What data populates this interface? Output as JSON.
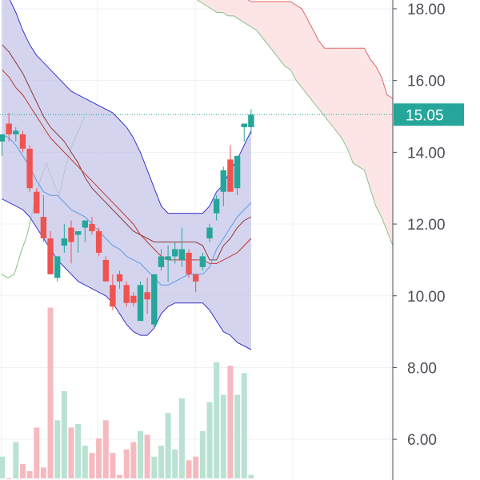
{
  "chart_data": {
    "type": "candlestick",
    "instrument_last_price": "15.05",
    "y_axis": {
      "ticks": [
        "6.00",
        "8.00",
        "10.00",
        "12.00",
        "14.00",
        "16.00",
        "18.00"
      ],
      "range": [
        5.0,
        18.2
      ],
      "position": "right"
    },
    "grid": true,
    "colors": {
      "up": "#26a69a",
      "down": "#ef5350",
      "up_volume": "#b9e2d3",
      "down_volume": "#f6b9c0",
      "band_fill": "#c5c6e8",
      "band_line": "#3a35c9",
      "cloud_fill": "#fde0e0",
      "cloud_line_red": "#e06666",
      "cloud_line_green": "#8bc08b",
      "ma_red": "#c0392b",
      "ma_dark_red": "#8e3a3a",
      "ma_blue": "#5b9be8",
      "price_tag": "#26a69a",
      "axis_text": "#4a4e57"
    },
    "candles": [
      {
        "o": 14.3,
        "h": 14.4,
        "l": 13.9,
        "c": 14.5
      },
      {
        "o": 14.8,
        "h": 15.1,
        "l": 14.3,
        "c": 14.5
      },
      {
        "o": 14.5,
        "h": 14.7,
        "l": 14.3,
        "c": 14.6
      },
      {
        "o": 14.5,
        "h": 14.6,
        "l": 14.0,
        "c": 14.1
      },
      {
        "o": 14.1,
        "h": 14.2,
        "l": 12.9,
        "c": 13.0
      },
      {
        "o": 12.9,
        "h": 13.0,
        "l": 12.4,
        "c": 12.3
      },
      {
        "o": 12.2,
        "h": 12.8,
        "l": 11.5,
        "c": 11.6
      },
      {
        "o": 11.6,
        "h": 11.8,
        "l": 10.6,
        "c": 10.6
      },
      {
        "o": 10.5,
        "h": 11.1,
        "l": 10.4,
        "c": 11.1
      },
      {
        "o": 11.4,
        "h": 12.0,
        "l": 11.2,
        "c": 11.6
      },
      {
        "o": 11.9,
        "h": 12.1,
        "l": 10.9,
        "c": 11.5
      },
      {
        "o": 11.7,
        "h": 11.8,
        "l": 11.2,
        "c": 11.8
      },
      {
        "o": 11.9,
        "h": 12.1,
        "l": 11.5,
        "c": 12.1
      },
      {
        "o": 12.0,
        "h": 12.2,
        "l": 11.7,
        "c": 11.8
      },
      {
        "o": 11.8,
        "h": 11.9,
        "l": 11.1,
        "c": 11.2
      },
      {
        "o": 11.0,
        "h": 11.1,
        "l": 10.4,
        "c": 10.4
      },
      {
        "o": 10.3,
        "h": 10.6,
        "l": 9.6,
        "c": 9.7
      },
      {
        "o": 10.6,
        "h": 10.7,
        "l": 10.2,
        "c": 10.4
      },
      {
        "o": 10.3,
        "h": 10.4,
        "l": 9.7,
        "c": 9.8
      },
      {
        "o": 10.0,
        "h": 10.1,
        "l": 9.7,
        "c": 9.8
      },
      {
        "o": 9.3,
        "h": 10.4,
        "l": 9.3,
        "c": 10.3
      },
      {
        "o": 10.1,
        "h": 10.5,
        "l": 9.5,
        "c": 9.9
      },
      {
        "o": 9.2,
        "h": 10.6,
        "l": 9.1,
        "c": 10.6
      },
      {
        "o": 10.8,
        "h": 11.3,
        "l": 10.7,
        "c": 11.1
      },
      {
        "o": 11.0,
        "h": 11.4,
        "l": 10.4,
        "c": 11.1
      },
      {
        "o": 11.1,
        "h": 11.5,
        "l": 10.9,
        "c": 11.3
      },
      {
        "o": 11.0,
        "h": 11.9,
        "l": 10.8,
        "c": 11.3
      },
      {
        "o": 11.2,
        "h": 11.3,
        "l": 10.5,
        "c": 10.6
      },
      {
        "o": 10.6,
        "h": 10.6,
        "l": 10.1,
        "c": 10.4
      },
      {
        "o": 10.8,
        "h": 11.2,
        "l": 10.7,
        "c": 11.1
      },
      {
        "o": 11.6,
        "h": 12.0,
        "l": 11.5,
        "c": 11.9
      },
      {
        "o": 12.3,
        "h": 12.8,
        "l": 12.1,
        "c": 12.7
      },
      {
        "o": 12.9,
        "h": 13.6,
        "l": 12.5,
        "c": 13.5
      },
      {
        "o": 13.8,
        "h": 14.2,
        "l": 12.9,
        "c": 12.9
      },
      {
        "o": 13.0,
        "h": 13.9,
        "l": 12.8,
        "c": 13.9
      },
      {
        "o": 14.7,
        "h": 14.8,
        "l": 14.3,
        "c": 14.8
      },
      {
        "o": 14.7,
        "h": 15.2,
        "l": 14.5,
        "c": 15.05
      }
    ],
    "volume_scale_max": 9.8,
    "volumes": [
      5.6,
      5.0,
      6.0,
      5.4,
      5.2,
      6.4,
      5.3,
      9.7,
      6.6,
      7.4,
      6.4,
      6.5,
      5.9,
      5.7,
      6.1,
      6.6,
      5.7,
      5.1,
      5.8,
      6.0,
      6.3,
      6.2,
      5.6,
      5.9,
      6.8,
      5.8,
      7.2,
      5.5,
      5.6,
      6.3,
      7.1,
      8.2,
      7.3,
      8.1,
      7.3,
      7.9,
      5.1
    ],
    "bollinger_upper": [
      18.6,
      18.3,
      17.9,
      17.4,
      17.0,
      16.7,
      16.5,
      16.3,
      16.1,
      15.9,
      15.7,
      15.6,
      15.5,
      15.4,
      15.3,
      15.2,
      15.1,
      14.9,
      14.7,
      14.4,
      14.0,
      13.5,
      13.0,
      12.5,
      12.3,
      12.3,
      12.3,
      12.3,
      12.3,
      12.3,
      12.5,
      12.9,
      13.1,
      13.5,
      13.8,
      14.2,
      14.6
    ],
    "bollinger_lower": [
      12.7,
      12.6,
      12.5,
      12.4,
      12.2,
      11.9,
      11.6,
      11.3,
      11.0,
      10.8,
      10.6,
      10.4,
      10.3,
      10.2,
      10.1,
      10.0,
      9.8,
      9.5,
      9.2,
      9.0,
      8.9,
      8.9,
      9.1,
      9.5,
      9.7,
      9.8,
      9.8,
      9.8,
      9.8,
      9.8,
      9.6,
      9.3,
      9.0,
      8.9,
      8.7,
      8.6,
      8.5
    ],
    "ma_red": [
      16.3,
      16.1,
      15.8,
      15.6,
      15.3,
      15.0,
      14.7,
      14.4,
      14.2,
      14.0,
      13.8,
      13.6,
      13.4,
      13.2,
      13.0,
      12.8,
      12.6,
      12.4,
      12.2,
      12.0,
      11.7,
      11.5,
      11.3,
      11.1,
      11.0,
      11.0,
      11.0,
      11.0,
      11.0,
      11.0,
      10.9,
      10.9,
      11.0,
      11.1,
      11.2,
      11.4,
      11.6
    ],
    "ma_dark_red": [
      17.0,
      16.8,
      16.5,
      16.2,
      15.8,
      15.4,
      15.0,
      14.7,
      14.5,
      14.3,
      14.0,
      13.7,
      13.3,
      13.0,
      12.8,
      12.6,
      12.4,
      12.2,
      12.0,
      11.8,
      11.7,
      11.6,
      11.5,
      11.5,
      11.5,
      11.5,
      11.5,
      11.5,
      11.5,
      11.4,
      11.0,
      11.0,
      11.4,
      11.6,
      11.9,
      12.1,
      12.2
    ],
    "ma_blue": [
      14.5,
      14.4,
      14.2,
      13.9,
      13.6,
      13.2,
      12.9,
      12.8,
      12.8,
      12.6,
      12.4,
      12.3,
      12.2,
      12.0,
      11.8,
      11.6,
      11.4,
      11.3,
      11.1,
      11.0,
      10.9,
      10.7,
      10.5,
      10.3,
      10.3,
      10.4,
      10.5,
      10.6,
      10.6,
      10.6,
      10.8,
      11.3,
      11.6,
      11.9,
      12.2,
      12.4,
      12.6
    ],
    "cloud_red": [
      21.0,
      20.6,
      20.2,
      19.8,
      19.4,
      19.0,
      18.9,
      18.8,
      18.7,
      18.6,
      18.6,
      18.5,
      18.4,
      18.4,
      18.3,
      18.3,
      18.2,
      18.2,
      18.2,
      18.2,
      18.2,
      18.2,
      18.2,
      18.2,
      18.1,
      18.0,
      17.7,
      17.4,
      17.1,
      16.9,
      16.9,
      16.9,
      16.9,
      16.9,
      16.9,
      16.9,
      16.9,
      16.6,
      16.4,
      16.1,
      15.6,
      15.5
    ],
    "cloud_green": [
      19.3,
      19.0,
      18.8,
      18.6,
      18.5,
      18.4,
      18.3,
      18.2,
      18.1,
      18.0,
      17.9,
      17.9,
      17.8,
      17.8,
      17.7,
      17.6,
      17.5,
      17.4,
      17.2,
      17.0,
      16.8,
      16.6,
      16.4,
      16.3,
      16.0,
      15.8,
      15.6,
      15.4,
      15.2,
      15.0,
      14.8,
      14.6,
      14.4,
      14.1,
      13.7,
      13.6,
      13.5,
      13.0,
      12.5,
      12.2,
      11.8,
      11.4
    ],
    "lagging_line": [
      10.6,
      10.5,
      10.6,
      11.2,
      11.7,
      12.5,
      13.2,
      13.7,
      13.2,
      12.8,
      13.6,
      14.2,
      14.6,
      15.0
    ]
  }
}
